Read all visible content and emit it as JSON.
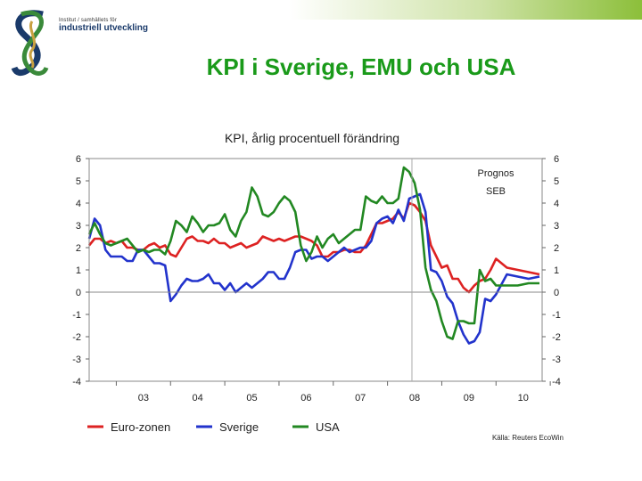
{
  "slide": {
    "title": "KPI i Sverige, EMU och USA",
    "logo_small": "Institut / samhällets för",
    "logo_big": "industriell utveckling"
  },
  "colors": {
    "euro": "#dd2222",
    "sverige": "#2233cc",
    "usa": "#228822",
    "title": "#1a9a1a",
    "logo_blue": "#1a3a6a",
    "logo_green": "#3a8a3a",
    "logo_gold": "#c8a040"
  },
  "chart_data": {
    "type": "line",
    "title": "KPI, årlig procentuell förändring",
    "x_tick_labels": [
      "03",
      "04",
      "05",
      "06",
      "07",
      "08",
      "09",
      "10"
    ],
    "x_range": [
      2002.5,
      2010.85
    ],
    "ylim": [
      -4,
      6
    ],
    "y_ticks": [
      6,
      5,
      4,
      3,
      2,
      1,
      0,
      -1,
      -2,
      -3,
      -4
    ],
    "grid": false,
    "forecast_start": 2008.45,
    "annotation": [
      "Prognos",
      "SEB"
    ],
    "source": "Källa: Reuters EcoWin",
    "legend_position": "bottom",
    "series": [
      {
        "name": "Euro-zonen",
        "color": "#dd2222",
        "x": [
          2002.5,
          2002.6,
          2002.7,
          2002.8,
          2002.9,
          2003.0,
          2003.1,
          2003.2,
          2003.3,
          2003.4,
          2003.5,
          2003.6,
          2003.7,
          2003.8,
          2003.9,
          2004.0,
          2004.1,
          2004.2,
          2004.3,
          2004.4,
          2004.5,
          2004.6,
          2004.7,
          2004.8,
          2004.9,
          2005.0,
          2005.1,
          2005.2,
          2005.3,
          2005.4,
          2005.5,
          2005.6,
          2005.7,
          2005.8,
          2005.9,
          2006.0,
          2006.1,
          2006.2,
          2006.3,
          2006.4,
          2006.5,
          2006.6,
          2006.7,
          2006.8,
          2006.9,
          2007.0,
          2007.1,
          2007.2,
          2007.3,
          2007.4,
          2007.5,
          2007.6,
          2007.7,
          2007.8,
          2007.9,
          2008.0,
          2008.1,
          2008.2,
          2008.3,
          2008.4,
          2008.5,
          2008.6,
          2008.7,
          2008.8,
          2008.9,
          2009.0,
          2009.1,
          2009.2,
          2009.3,
          2009.4,
          2009.5,
          2009.6,
          2009.7,
          2009.8,
          2009.9,
          2010.0,
          2010.2,
          2010.4,
          2010.6,
          2010.8
        ],
        "y": [
          2.1,
          2.4,
          2.4,
          2.2,
          2.3,
          2.2,
          2.3,
          2.0,
          2.0,
          1.9,
          1.9,
          2.1,
          2.2,
          2.0,
          2.1,
          1.7,
          1.6,
          2.0,
          2.4,
          2.5,
          2.3,
          2.3,
          2.2,
          2.4,
          2.2,
          2.2,
          2.0,
          2.1,
          2.2,
          2.0,
          2.1,
          2.2,
          2.5,
          2.4,
          2.3,
          2.4,
          2.3,
          2.4,
          2.5,
          2.5,
          2.4,
          2.3,
          2.1,
          1.6,
          1.6,
          1.8,
          1.8,
          1.9,
          1.9,
          1.8,
          1.8,
          2.1,
          2.6,
          3.1,
          3.1,
          3.2,
          3.3,
          3.6,
          3.3,
          4.0,
          3.9,
          3.6,
          3.2,
          2.1,
          1.6,
          1.1,
          1.2,
          0.6,
          0.6,
          0.2,
          0.0,
          0.3,
          0.5,
          0.6,
          1.0,
          1.5,
          1.1,
          1.0,
          0.9,
          0.8
        ]
      },
      {
        "name": "Sverige",
        "color": "#2233cc",
        "x": [
          2002.5,
          2002.6,
          2002.7,
          2002.8,
          2002.9,
          2003.0,
          2003.1,
          2003.2,
          2003.3,
          2003.4,
          2003.5,
          2003.6,
          2003.7,
          2003.8,
          2003.9,
          2004.0,
          2004.1,
          2004.2,
          2004.3,
          2004.4,
          2004.5,
          2004.6,
          2004.7,
          2004.8,
          2004.9,
          2005.0,
          2005.1,
          2005.2,
          2005.3,
          2005.4,
          2005.5,
          2005.6,
          2005.7,
          2005.8,
          2005.9,
          2006.0,
          2006.1,
          2006.2,
          2006.3,
          2006.4,
          2006.5,
          2006.6,
          2006.7,
          2006.8,
          2006.9,
          2007.0,
          2007.1,
          2007.2,
          2007.3,
          2007.4,
          2007.5,
          2007.6,
          2007.7,
          2007.8,
          2007.9,
          2008.0,
          2008.1,
          2008.2,
          2008.3,
          2008.4,
          2008.5,
          2008.6,
          2008.7,
          2008.8,
          2008.9,
          2009.0,
          2009.1,
          2009.2,
          2009.3,
          2009.4,
          2009.5,
          2009.6,
          2009.7,
          2009.8,
          2009.9,
          2010.0,
          2010.2,
          2010.4,
          2010.6,
          2010.8
        ],
        "y": [
          2.4,
          3.3,
          3.0,
          1.9,
          1.6,
          1.6,
          1.6,
          1.4,
          1.4,
          1.9,
          1.9,
          1.6,
          1.3,
          1.3,
          1.2,
          -0.4,
          -0.1,
          0.3,
          0.6,
          0.5,
          0.5,
          0.6,
          0.8,
          0.4,
          0.4,
          0.1,
          0.4,
          0.0,
          0.2,
          0.4,
          0.2,
          0.4,
          0.6,
          0.9,
          0.9,
          0.6,
          0.6,
          1.1,
          1.8,
          1.9,
          1.9,
          1.5,
          1.6,
          1.6,
          1.4,
          1.6,
          1.8,
          2.0,
          1.8,
          1.9,
          2.0,
          2.0,
          2.3,
          3.1,
          3.3,
          3.4,
          3.1,
          3.7,
          3.2,
          4.2,
          4.3,
          4.4,
          3.6,
          1.0,
          0.9,
          0.5,
          -0.2,
          -0.5,
          -1.3,
          -1.9,
          -2.3,
          -2.2,
          -1.8,
          -0.3,
          -0.4,
          -0.1,
          0.8,
          0.7,
          0.6,
          0.7
        ]
      },
      {
        "name": "USA",
        "color": "#228822",
        "x": [
          2002.5,
          2002.6,
          2002.7,
          2002.8,
          2002.9,
          2003.0,
          2003.1,
          2003.2,
          2003.3,
          2003.4,
          2003.5,
          2003.6,
          2003.7,
          2003.8,
          2003.9,
          2004.0,
          2004.1,
          2004.2,
          2004.3,
          2004.4,
          2004.5,
          2004.6,
          2004.7,
          2004.8,
          2004.9,
          2005.0,
          2005.1,
          2005.2,
          2005.3,
          2005.4,
          2005.5,
          2005.6,
          2005.7,
          2005.8,
          2005.9,
          2006.0,
          2006.1,
          2006.2,
          2006.3,
          2006.4,
          2006.5,
          2006.6,
          2006.7,
          2006.8,
          2006.9,
          2007.0,
          2007.1,
          2007.2,
          2007.3,
          2007.4,
          2007.5,
          2007.6,
          2007.7,
          2007.8,
          2007.9,
          2008.0,
          2008.1,
          2008.2,
          2008.3,
          2008.4,
          2008.5,
          2008.6,
          2008.7,
          2008.8,
          2008.9,
          2009.0,
          2009.1,
          2009.2,
          2009.3,
          2009.4,
          2009.5,
          2009.6,
          2009.7,
          2009.8,
          2009.9,
          2010.0,
          2010.2,
          2010.4,
          2010.6,
          2010.8
        ],
        "y": [
          2.6,
          3.1,
          2.6,
          2.2,
          2.1,
          2.2,
          2.3,
          2.4,
          2.1,
          1.8,
          1.9,
          1.8,
          1.9,
          1.9,
          1.7,
          2.3,
          3.2,
          3.0,
          2.7,
          3.4,
          3.1,
          2.7,
          3.0,
          3.0,
          3.1,
          3.5,
          2.8,
          2.5,
          3.2,
          3.6,
          4.7,
          4.3,
          3.5,
          3.4,
          3.6,
          4.0,
          4.3,
          4.1,
          3.6,
          2.1,
          1.4,
          1.8,
          2.5,
          2.0,
          2.4,
          2.6,
          2.2,
          2.4,
          2.6,
          2.8,
          2.8,
          4.3,
          4.1,
          4.0,
          4.3,
          4.0,
          4.0,
          4.2,
          5.6,
          5.4,
          4.9,
          3.7,
          1.1,
          0.1,
          -0.4,
          -1.3,
          -2.0,
          -2.1,
          -1.3,
          -1.3,
          -1.4,
          -1.4,
          1.0,
          0.5,
          0.6,
          0.3,
          0.3,
          0.3,
          0.4,
          0.4
        ]
      }
    ]
  }
}
